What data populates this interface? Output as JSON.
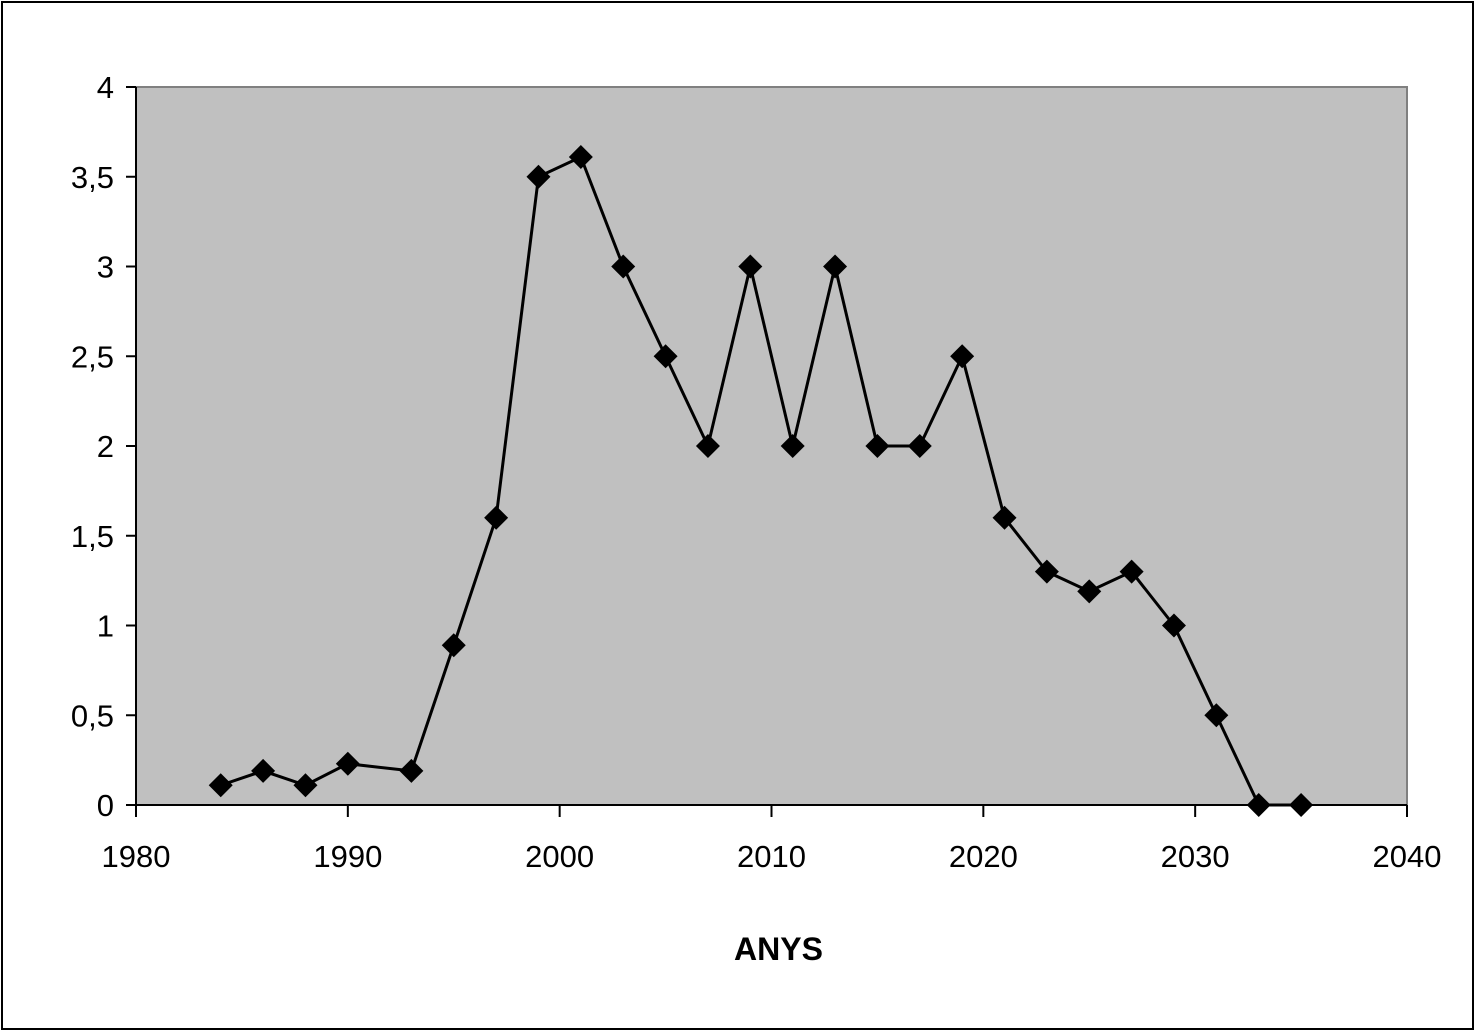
{
  "chart_data": {
    "type": "line",
    "title": "",
    "xlabel": "ANYS",
    "ylabel": "",
    "xlim": [
      1980,
      2040
    ],
    "ylim": [
      0,
      4
    ],
    "x_ticks": [
      1980,
      1990,
      2000,
      2010,
      2020,
      2030,
      2040
    ],
    "y_ticks": [
      0,
      0.5,
      1,
      1.5,
      2,
      2.5,
      3,
      3.5,
      4
    ],
    "y_tick_labels": [
      "0",
      "0,5",
      "1",
      "1,5",
      "2",
      "2,5",
      "3",
      "3,5",
      "4"
    ],
    "x_tick_labels": [
      "1980",
      "1990",
      "2000",
      "2010",
      "2020",
      "2030",
      "2040"
    ],
    "grid": false,
    "legend": "none",
    "colors": {
      "plot_area": "#c0c0c0",
      "line": "#000000",
      "marker": "#000000"
    },
    "marker": "diamond",
    "series": [
      {
        "x": [
          1984,
          1986,
          1988,
          1990,
          1993,
          1995,
          1997,
          1999,
          2001,
          2003,
          2005,
          2007,
          2009,
          2011,
          2013,
          2015,
          2017,
          2019,
          2021,
          2023,
          2025,
          2027,
          2029,
          2031,
          2033,
          2035
        ],
        "values": [
          0.11,
          0.19,
          0.11,
          0.23,
          0.19,
          0.89,
          1.6,
          3.5,
          3.61,
          3.0,
          2.5,
          2.0,
          3.0,
          2.0,
          3.0,
          2.0,
          2.0,
          2.5,
          1.6,
          1.3,
          1.19,
          1.3,
          1.0,
          0.5,
          0.0,
          0.0
        ]
      }
    ]
  }
}
